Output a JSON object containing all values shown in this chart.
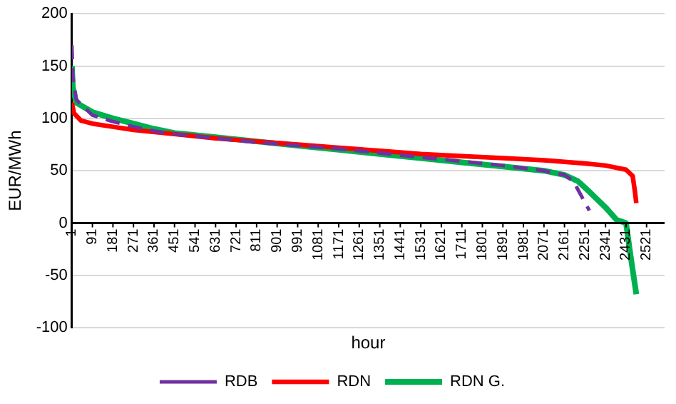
{
  "chart_data": {
    "type": "line",
    "xlabel": "hour",
    "ylabel": "EUR/MWh",
    "xlim": [
      1,
      2600
    ],
    "xticks": [
      1,
      91,
      181,
      271,
      361,
      451,
      541,
      631,
      721,
      811,
      901,
      991,
      1081,
      1171,
      1261,
      1351,
      1441,
      1531,
      1621,
      1711,
      1801,
      1891,
      1981,
      2071,
      2161,
      2251,
      2341,
      2431,
      2521
    ],
    "ylim": [
      -100,
      200
    ],
    "yticks": [
      -100,
      -50,
      0,
      50,
      100,
      150,
      200
    ],
    "grid": "y",
    "legend": "bottom",
    "marker": "none",
    "series": [
      {
        "name": "RDB",
        "color": "#7030a0",
        "line_style": "dashed",
        "x": [
          1,
          5,
          20,
          91,
          181,
          271,
          361,
          451,
          631,
          811,
          991,
          1171,
          1351,
          1531,
          1711,
          1891,
          2071,
          2161,
          2200,
          2230,
          2270
        ],
        "values": [
          170,
          140,
          118,
          103,
          97,
          92,
          88,
          85,
          81,
          77,
          74,
          71,
          67,
          63,
          59,
          55,
          50,
          46,
          40,
          28,
          12
        ]
      },
      {
        "name": "RDN",
        "color": "#ff0000",
        "line_style": "solid",
        "x": [
          1,
          10,
          40,
          91,
          181,
          271,
          451,
          631,
          811,
          991,
          1171,
          1351,
          1531,
          1711,
          1891,
          2071,
          2251,
          2341,
          2431,
          2460,
          2470,
          2476
        ],
        "values": [
          115,
          105,
          98,
          95,
          92,
          89,
          85,
          81,
          78,
          75,
          72,
          69,
          66,
          64,
          62,
          60,
          57,
          55,
          51,
          45,
          30,
          19
        ]
      },
      {
        "name": "RDN G.",
        "color": "#00b050",
        "line_style": "solid",
        "x": [
          1,
          5,
          20,
          91,
          181,
          271,
          361,
          451,
          631,
          811,
          991,
          1171,
          1351,
          1531,
          1711,
          1891,
          2071,
          2161,
          2220,
          2270,
          2341,
          2390,
          2431,
          2450,
          2476
        ],
        "values": [
          150,
          130,
          115,
          106,
          100,
          95,
          90,
          86,
          82,
          78,
          74,
          70,
          66,
          62,
          58,
          54,
          50,
          46,
          40,
          30,
          15,
          3,
          0,
          -30,
          -68
        ]
      }
    ]
  }
}
